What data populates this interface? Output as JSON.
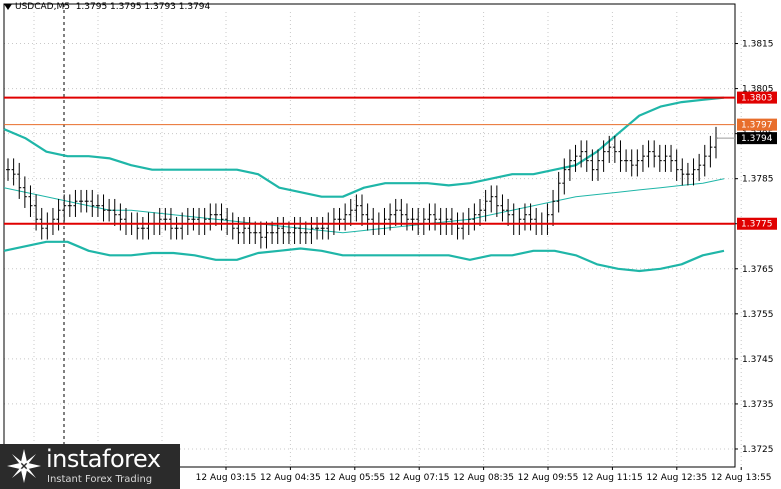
{
  "header": {
    "symbol": "USDCAD,M5",
    "ohlc": "1.3795 1.3795 1.3793 1.3794"
  },
  "logo": {
    "name": "instaforex",
    "tagline": "Instant Forex Trading"
  },
  "chart_data": {
    "type": "candlestick",
    "symbol": "USDCAD",
    "timeframe": "M5",
    "ylim": [
      1.3721,
      1.3822
    ],
    "y_ticks": [
      "1.3815",
      "1.3805",
      "1.3795",
      "1.3785",
      "1.3775",
      "1.3765",
      "1.3755",
      "1.3745",
      "1.3735",
      "1.3725"
    ],
    "x_ticks": [
      "12 Aug 03:15",
      "12 Aug 04:35",
      "12 Aug 05:55",
      "12 Aug 07:15",
      "12 Aug 08:35",
      "12 Aug 09:55",
      "12 Aug 11:15",
      "12 Aug 12:35",
      "12 Aug 13:55"
    ],
    "grid": true,
    "levels": [
      {
        "label": "1.3803",
        "value": 1.3803,
        "color": "#e00000",
        "style": "thick"
      },
      {
        "label": "1.3797",
        "value": 1.3797,
        "color": "#e86e2c",
        "style": "thin"
      },
      {
        "label": "1.3775",
        "value": 1.3775,
        "color": "#e00000",
        "style": "thick"
      }
    ],
    "current_price": {
      "label": "1.3794",
      "value": 1.3794
    },
    "closes": [
      1.3787,
      1.3786,
      1.3783,
      1.3781,
      1.3779,
      1.3776,
      1.3774,
      1.3775,
      1.3776,
      1.3778,
      1.3779,
      1.3779,
      1.378,
      1.378,
      1.378,
      1.3779,
      1.3779,
      1.3778,
      1.3778,
      1.3777,
      1.3776,
      1.3775,
      1.3775,
      1.3774,
      1.3774,
      1.3775,
      1.3775,
      1.3776,
      1.3776,
      1.3774,
      1.3774,
      1.3775,
      1.3776,
      1.3776,
      1.3775,
      1.3776,
      1.3777,
      1.3777,
      1.3776,
      1.3775,
      1.3774,
      1.3773,
      1.3774,
      1.3773,
      1.3773,
      1.3772,
      1.3773,
      1.3773,
      1.3774,
      1.3773,
      1.3773,
      1.3774,
      1.3773,
      1.3773,
      1.3774,
      1.3774,
      1.3774,
      1.3775,
      1.3776,
      1.3776,
      1.3777,
      1.3778,
      1.3779,
      1.3777,
      1.3776,
      1.3775,
      1.3775,
      1.3776,
      1.3777,
      1.3778,
      1.3777,
      1.3776,
      1.3776,
      1.3775,
      1.3776,
      1.3777,
      1.3776,
      1.3775,
      1.3776,
      1.3775,
      1.3774,
      1.3775,
      1.3776,
      1.3777,
      1.3778,
      1.378,
      1.3781,
      1.3779,
      1.3778,
      1.3777,
      1.3775,
      1.3776,
      1.3777,
      1.3776,
      1.3775,
      1.3775,
      1.3777,
      1.378,
      1.3784,
      1.3787,
      1.3789,
      1.379,
      1.3791,
      1.3789,
      1.3787,
      1.3789,
      1.3791,
      1.3792,
      1.3791,
      1.3789,
      1.3789,
      1.3788,
      1.3789,
      1.379,
      1.3791,
      1.379,
      1.3789,
      1.379,
      1.3789,
      1.3787,
      1.3786,
      1.3786,
      1.3787,
      1.3788,
      1.379,
      1.3792,
      1.3794
    ],
    "ma_middle": [
      1.3783,
      1.3782,
      1.3781,
      1.378,
      1.3779,
      1.3778,
      1.3778,
      1.37775,
      1.3777,
      1.37765,
      1.3776,
      1.37755,
      1.3775,
      1.37745,
      1.3774,
      1.37735,
      1.3773,
      1.37735,
      1.3774,
      1.37745,
      1.3775,
      1.37755,
      1.3776,
      1.3777,
      1.3778,
      1.3779,
      1.378,
      1.3781,
      1.37815,
      1.3782,
      1.37825,
      1.3783,
      1.37835,
      1.3784,
      1.3785
    ],
    "bollinger_upper": [
      1.3796,
      1.3794,
      1.3791,
      1.379,
      1.379,
      1.37895,
      1.3788,
      1.3787,
      1.3787,
      1.3787,
      1.3787,
      1.3787,
      1.3786,
      1.3783,
      1.3782,
      1.3781,
      1.3781,
      1.3783,
      1.3784,
      1.3784,
      1.3784,
      1.37835,
      1.3784,
      1.3785,
      1.3786,
      1.3786,
      1.3787,
      1.3788,
      1.3791,
      1.3795,
      1.3799,
      1.3801,
      1.3802,
      1.38025,
      1.3803
    ],
    "bollinger_lower": [
      1.3769,
      1.377,
      1.3771,
      1.3771,
      1.3769,
      1.3768,
      1.3768,
      1.37685,
      1.37685,
      1.3768,
      1.3767,
      1.3767,
      1.37685,
      1.3769,
      1.37695,
      1.3769,
      1.3768,
      1.3768,
      1.3768,
      1.3768,
      1.3768,
      1.3768,
      1.3767,
      1.3768,
      1.3768,
      1.3769,
      1.3769,
      1.3768,
      1.3766,
      1.3765,
      1.37645,
      1.3765,
      1.3766,
      1.3768,
      1.3769
    ]
  }
}
